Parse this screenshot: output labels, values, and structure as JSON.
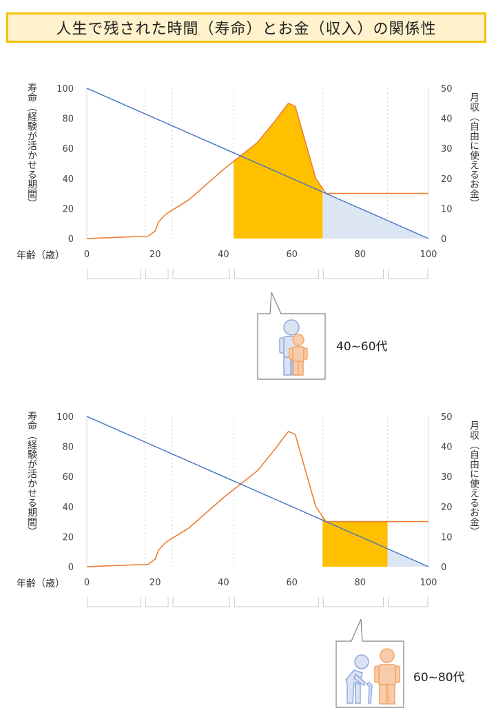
{
  "title": "人生で残された時間（寿命）とお金（収入）の関係性",
  "colors": {
    "life_line": "#4472c4",
    "income_line": "#ed7d31",
    "highlight_fill": "#ffc000",
    "remaining_fill": "#dce6f2",
    "grid": "#d9d9d9",
    "title_bg": "#fff2cc",
    "title_border": "#f2c200"
  },
  "charts": [
    {
      "left_axis_label": "寿命（経験が活かせる期間）",
      "right_axis_label": "月収（自由に使えるお金）",
      "x_axis_label": "年齢（歳）",
      "callout_label": "40~60代",
      "callout_icon": "parent-and-child-icon",
      "highlight_range": [
        43,
        69
      ],
      "remaining_range": [
        69,
        100
      ]
    },
    {
      "left_axis_label": "寿命（経験が活かせる期間）",
      "right_axis_label": "月収（自由に使えるお金）",
      "x_axis_label": "年齢（歳）",
      "callout_label": "60~80代",
      "callout_icon": "elderly-and-adult-icon",
      "highlight_range": [
        69,
        88
      ],
      "remaining_range": [
        88,
        100
      ]
    }
  ],
  "chart_data": [
    {
      "type": "line",
      "x": [
        0,
        18,
        20,
        21,
        23,
        30,
        40,
        50,
        55,
        59,
        61,
        64,
        67,
        70,
        80,
        100
      ],
      "series": [
        {
          "values": [
            100,
            82,
            80,
            79,
            77,
            70,
            60,
            50,
            45,
            41,
            39,
            36,
            33,
            30,
            20,
            0
          ]
        },
        {
          "values": [
            0,
            0.8,
            2.5,
            5.5,
            8,
            13,
            23,
            32,
            39,
            45,
            44,
            32,
            20,
            15,
            15,
            15
          ]
        }
      ],
      "x_ticks": [
        0,
        20,
        40,
        60,
        80,
        100
      ],
      "y_left_ticks": [
        0,
        20,
        40,
        60,
        80,
        100
      ],
      "y_right_ticks": [
        0,
        10,
        20,
        30,
        40,
        50
      ],
      "xlim": [
        0,
        100
      ],
      "ylim_left": [
        0,
        100
      ],
      "ylim_right": [
        0,
        50
      ]
    },
    {
      "type": "line",
      "x": [
        0,
        18,
        20,
        21,
        23,
        30,
        40,
        50,
        55,
        59,
        61,
        64,
        67,
        70,
        80,
        100
      ],
      "series": [
        {
          "values": [
            100,
            82,
            80,
            79,
            77,
            70,
            60,
            50,
            45,
            41,
            39,
            36,
            33,
            30,
            20,
            0
          ]
        },
        {
          "values": [
            0,
            0.8,
            2.5,
            5.5,
            8,
            13,
            23,
            32,
            39,
            45,
            44,
            32,
            20,
            15,
            15,
            15
          ]
        }
      ],
      "x_ticks": [
        0,
        20,
        40,
        60,
        80,
        100
      ],
      "y_left_ticks": [
        0,
        20,
        40,
        60,
        80,
        100
      ],
      "y_right_ticks": [
        0,
        10,
        20,
        30,
        40,
        50
      ],
      "xlim": [
        0,
        100
      ],
      "ylim_left": [
        0,
        100
      ],
      "ylim_right": [
        0,
        50
      ]
    }
  ]
}
